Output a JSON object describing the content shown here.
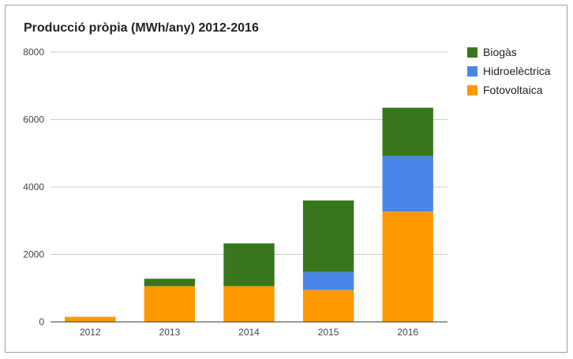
{
  "chart_data": {
    "type": "bar",
    "stacked": true,
    "title": "Producció pròpia (MWh/any) 2012-2016",
    "categories": [
      "2012",
      "2013",
      "2014",
      "2015",
      "2016"
    ],
    "series": [
      {
        "name": "Fotovoltaica",
        "color": "#ff9900",
        "values": [
          150,
          1060,
          1060,
          950,
          3270
        ]
      },
      {
        "name": "Hidroelèctrica",
        "color": "#4a86e8",
        "values": [
          0,
          0,
          0,
          530,
          1650
        ]
      },
      {
        "name": "Biogàs",
        "color": "#38761d",
        "values": [
          0,
          220,
          1270,
          2120,
          1430
        ]
      }
    ],
    "legend_order": [
      "Biogàs",
      "Hidroelèctrica",
      "Fotovoltaica"
    ],
    "legend_position": "right",
    "ylim": [
      0,
      8000
    ],
    "yticks": [
      0,
      2000,
      4000,
      6000,
      8000
    ],
    "grid": true
  }
}
